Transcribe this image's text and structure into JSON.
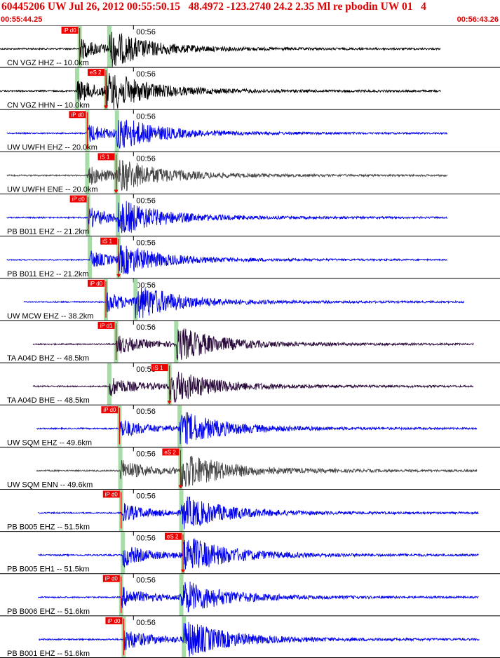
{
  "header": {
    "title": "60445206 UW Jul 26, 2012 00:55:50.15   48.4972 -123.2740 24.2 2.35 Ml re pbodin UW 01   4",
    "time_start": "00:55:44.25",
    "time_end": "00:56:43.26"
  },
  "chart_data": {
    "type": "line",
    "title": "60445206 UW Jul 26, 2012 00:55:50.15   48.4972 -123.2740 24.2 2.35 Ml re pbodin UW 01   4",
    "x_range": [
      "00:55:44.25",
      "00:56:43.26"
    ],
    "minute_tick_label": "00:56",
    "colors": {
      "header": "#dd0000",
      "pick": "#ee0000",
      "window": "#a6dca6",
      "blue": "#0000ee",
      "black": "#000000",
      "gray": "#444444",
      "purple": "#2a0a3a"
    },
    "traces": [
      {
        "label": "CN VGZ HHZ -- 10.0km",
        "color": "#000000",
        "pick": "iP d0",
        "pick_t": 9.4,
        "start_t": 0.0,
        "end_t": 52.0,
        "amp": 1.0
      },
      {
        "label": "CN VGZ HHN -- 10.0km",
        "color": "#000000",
        "pick": "eS 2",
        "pick_t": 12.5,
        "start_t": 0.0,
        "end_t": 52.0,
        "amp": 1.0
      },
      {
        "label": "UW UWFH EHZ -- 20.0km",
        "color": "#0000ee",
        "pick": "iP d0",
        "pick_t": 10.3,
        "start_t": 0.8,
        "end_t": 52.8,
        "amp": 0.85
      },
      {
        "label": "UW UWFH ENE -- 20.0km",
        "color": "#444444",
        "pick": "iS 1",
        "pick_t": 13.7,
        "start_t": 0.8,
        "end_t": 52.8,
        "amp": 0.9
      },
      {
        "label": "PB B011 EHZ -- 21.2km",
        "color": "#0000ee",
        "pick": "iP d0",
        "pick_t": 10.4,
        "start_t": 0.8,
        "end_t": 52.8,
        "amp": 0.9
      },
      {
        "label": "PB B011 EH2 -- 21.2km",
        "color": "#0000ee",
        "pick": "iS 1",
        "pick_t": 14.0,
        "start_t": 0.8,
        "end_t": 52.8,
        "amp": 0.8
      },
      {
        "label": "UW MCW EHZ -- 38.2km",
        "color": "#0000ee",
        "pick": "iP d0",
        "pick_t": 12.5,
        "start_t": 2.8,
        "end_t": 54.8,
        "amp": 0.9
      },
      {
        "label": "TA A04D BHZ -- 48.5km",
        "color": "#2a0a3a",
        "pick": "iP d1",
        "pick_t": 13.7,
        "start_t": 3.9,
        "end_t": 55.9,
        "amp": 0.9
      },
      {
        "label": "TA A04D BHE -- 48.5km",
        "color": "#2a0a3a",
        "pick": "iS 1",
        "pick_t": 20.0,
        "start_t": 3.9,
        "end_t": 55.9,
        "amp": 0.9
      },
      {
        "label": "UW SQM EHZ -- 49.6km",
        "color": "#0000ee",
        "pick": "iP d0",
        "pick_t": 14.1,
        "start_t": 4.3,
        "end_t": 56.3,
        "amp": 0.9
      },
      {
        "label": "UW SQM ENN -- 49.6km",
        "color": "#444444",
        "pick": "eS 2",
        "pick_t": 21.3,
        "start_t": 4.3,
        "end_t": 56.3,
        "amp": 1.0
      },
      {
        "label": "PB B005 EHZ -- 51.5km",
        "color": "#0000ee",
        "pick": "iP d0",
        "pick_t": 14.3,
        "start_t": 4.5,
        "end_t": 56.5,
        "amp": 0.9
      },
      {
        "label": "PB B005 EH1 -- 51.5km",
        "color": "#0000ee",
        "pick": "eS 2",
        "pick_t": 21.6,
        "start_t": 4.5,
        "end_t": 56.5,
        "amp": 1.0
      },
      {
        "label": "PB B006 EHZ -- 51.6km",
        "color": "#0000ee",
        "pick": "iP d0",
        "pick_t": 14.3,
        "start_t": 4.5,
        "end_t": 56.5,
        "amp": 0.9
      },
      {
        "label": "PB B001 EHZ -- 51.6km",
        "color": "#0000ee",
        "pick": "iP d0",
        "pick_t": 14.6,
        "start_t": 4.6,
        "end_t": 56.6,
        "amp": 1.0
      }
    ]
  }
}
